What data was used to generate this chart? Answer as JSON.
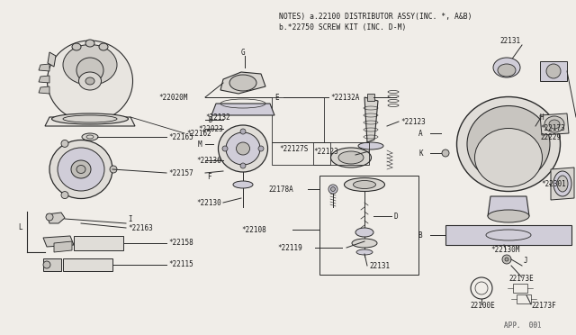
{
  "bg_color": "#f0ede8",
  "line_color": "#2a2a2a",
  "text_color": "#1a1a1a",
  "title1": "NOTES) a.22100 DISTRIBUTOR ASSY(INC. *, A&B)",
  "title2": "b.*22750 SCREW KIT (INC. D-M)",
  "watermark": "APP.  001",
  "fig_w": 6.4,
  "fig_h": 3.72,
  "dpi": 100
}
